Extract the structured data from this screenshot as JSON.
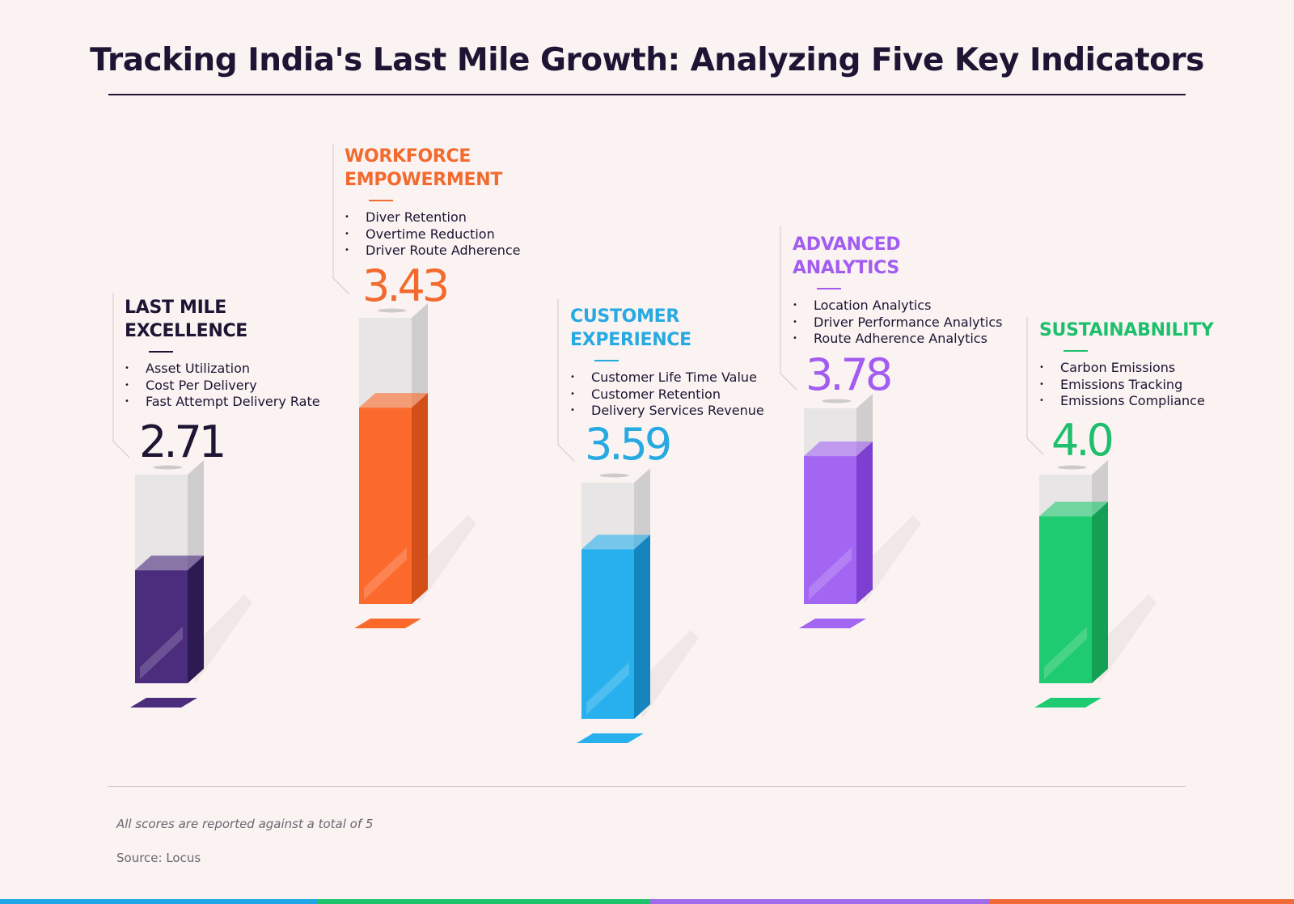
{
  "title": "Tracking India's Last Mile Growth: Analyzing Five Key Indicators",
  "chart_data": {
    "type": "bar",
    "title": "Tracking India's Last Mile Growth: Analyzing Five Key Indicators",
    "categories": [
      "LAST MILE EXCELLENCE",
      "WORKFORCE EMPOWERMENT",
      "CUSTOMER EXPERIENCE",
      "ADVANCED ANALYTICS",
      "SUSTAINABNILITY"
    ],
    "values": [
      2.71,
      3.43,
      3.59,
      3.78,
      4.0
    ],
    "ylim": [
      0,
      5
    ],
    "grid": false,
    "legend": "none"
  },
  "indicators": [
    {
      "title1": "LAST MILE",
      "title2": "EXCELLENCE",
      "value_label": "2.71",
      "value": 2.71,
      "color": "#1e1433",
      "bar": "#4b2c7d",
      "bar_side": "#2e1a52",
      "metrics": [
        "Asset Utilization",
        "Cost Per Delivery",
        "Fast Attempt Delivery Rate"
      ]
    },
    {
      "title1": "WORKFORCE",
      "title2": "EMPOWERMENT",
      "value_label": "3.43",
      "value": 3.43,
      "color": "#f26a2e",
      "bar": "#fb6a2c",
      "bar_side": "#d24f18",
      "metrics": [
        "Diver Retention",
        "Overtime Reduction",
        "Driver Route Adherence"
      ]
    },
    {
      "title1": "CUSTOMER",
      "title2": "EXPERIENCE",
      "value_label": "3.59",
      "value": 3.59,
      "color": "#27a9e1",
      "bar": "#28b0ee",
      "bar_side": "#1585c0",
      "metrics": [
        "Customer Life Time Value",
        "Customer Retention",
        "Delivery Services Revenue"
      ]
    },
    {
      "title1": "ADVANCED",
      "title2": "ANALYTICS",
      "value_label": "3.78",
      "value": 3.78,
      "color": "#a25cf0",
      "bar": "#a366f2",
      "bar_side": "#7c3fd0",
      "metrics": [
        "Location Analytics",
        "Driver Performance Analytics",
        "Route Adherence Analytics"
      ]
    },
    {
      "title1": "SUSTAINABNILITY",
      "title2": "",
      "value_label": "4.0",
      "value": 4.0,
      "color": "#1dbf6c",
      "bar": "#1fcb70",
      "bar_side": "#13a055",
      "metrics": [
        "Carbon Emissions",
        "Emissions Tracking",
        "Emissions Compliance"
      ]
    }
  ],
  "footer": {
    "note": "All scores are reported against a total of 5",
    "source": "Source: Locus"
  },
  "colorbar": [
    "#1fa6e6",
    "#1ec46c",
    "#a06ae8",
    "#f2693a"
  ]
}
